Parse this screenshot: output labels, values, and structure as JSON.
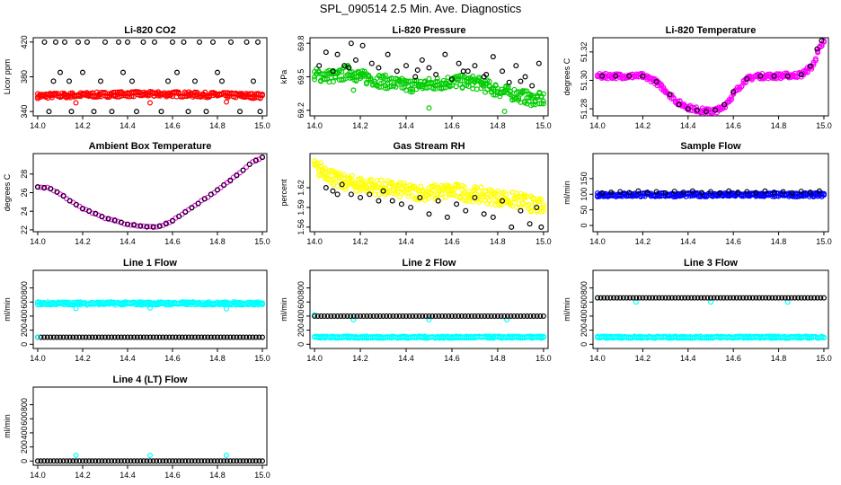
{
  "figure": {
    "title": "SPL_090514  2.5 Min. Ave. Diagnostics"
  },
  "chart_data": [
    {
      "id": "co2",
      "type": "scatter",
      "title": "Li-820 CO2",
      "xlabel": "",
      "ylabel": "Licor ppm",
      "xlim": [
        13.98,
        15.02
      ],
      "ylim": [
        335,
        425
      ],
      "xticks": [
        "14.0",
        "14.2",
        "14.4",
        "14.6",
        "14.8",
        "15.0"
      ],
      "yticks": [
        "340",
        "380",
        "420"
      ],
      "series": [
        {
          "color": "#ff0000",
          "style": "band",
          "x": [
            14.0,
            14.2,
            14.4,
            14.6,
            14.8,
            15.0
          ],
          "y": [
            358,
            359,
            360,
            360,
            359,
            358
          ],
          "spread": 3,
          "outliers": [
            [
              14.17,
              350
            ],
            [
              14.5,
              350
            ],
            [
              14.84,
              351
            ]
          ]
        },
        {
          "color": "#000000",
          "style": "points",
          "x": [
            14.03,
            14.08,
            14.12,
            14.18,
            14.22,
            14.3,
            14.36,
            14.4,
            14.47,
            14.52,
            14.6,
            14.65,
            14.72,
            14.78,
            14.86,
            14.93,
            14.98,
            14.05,
            14.15,
            14.25,
            14.33,
            14.44,
            14.55,
            14.67,
            14.75,
            14.9,
            14.99,
            14.07,
            14.14,
            14.28,
            14.42,
            14.58,
            14.7,
            14.82,
            14.96,
            14.1,
            14.2,
            14.38,
            14.62,
            14.8
          ],
          "y": [
            420,
            420,
            420,
            420,
            420,
            420,
            420,
            420,
            420,
            420,
            420,
            420,
            420,
            420,
            420,
            420,
            420,
            340,
            340,
            340,
            340,
            340,
            340,
            340,
            340,
            340,
            340,
            375,
            375,
            375,
            375,
            375,
            375,
            375,
            375,
            385,
            385,
            385,
            385,
            385
          ]
        }
      ]
    },
    {
      "id": "pressure",
      "type": "scatter",
      "title": "Li-820 Pressure",
      "xlabel": "",
      "ylabel": "kPa",
      "xlim": [
        13.98,
        15.02
      ],
      "ylim": [
        69.15,
        69.85
      ],
      "xticks": [
        "14.0",
        "14.2",
        "14.4",
        "14.6",
        "14.8",
        "15.0"
      ],
      "yticks": [
        "69.2",
        "69.5",
        "69.8"
      ],
      "series": [
        {
          "color": "#00cc00",
          "style": "band",
          "x": [
            14.0,
            14.1,
            14.15,
            14.2,
            14.3,
            14.4,
            14.5,
            14.6,
            14.7,
            14.8,
            14.9,
            14.95,
            15.0
          ],
          "y": [
            69.52,
            69.5,
            69.55,
            69.5,
            69.46,
            69.42,
            69.43,
            69.46,
            69.45,
            69.38,
            69.33,
            69.3,
            69.3
          ],
          "spread": 0.06,
          "outliers": [
            [
              14.17,
              69.38
            ],
            [
              14.5,
              69.22
            ],
            [
              14.83,
              69.19
            ]
          ]
        },
        {
          "color": "#000000",
          "style": "points",
          "x": [
            14.02,
            14.05,
            14.08,
            14.1,
            14.13,
            14.16,
            14.18,
            14.21,
            14.25,
            14.28,
            14.32,
            14.36,
            14.4,
            14.44,
            14.47,
            14.5,
            14.53,
            14.57,
            14.6,
            14.63,
            14.67,
            14.7,
            14.74,
            14.78,
            14.82,
            14.85,
            14.88,
            14.92,
            14.95,
            14.98,
            14.15,
            14.45,
            14.65,
            14.75,
            14.9
          ],
          "y": [
            69.6,
            69.72,
            69.55,
            69.7,
            69.6,
            69.8,
            69.65,
            69.78,
            69.62,
            69.58,
            69.7,
            69.55,
            69.6,
            69.5,
            69.65,
            69.58,
            69.52,
            69.7,
            69.48,
            69.62,
            69.55,
            69.6,
            69.5,
            69.68,
            69.55,
            69.45,
            69.6,
            69.5,
            69.42,
            69.62,
            69.58,
            69.56,
            69.55,
            69.52,
            69.46
          ]
        }
      ]
    },
    {
      "id": "temp820",
      "type": "scatter",
      "title": "Li-820 Temperature",
      "xlabel": "",
      "ylabel": "degrees C",
      "xlim": [
        13.98,
        15.02
      ],
      "ylim": [
        51.275,
        51.33
      ],
      "xticks": [
        "14.0",
        "14.2",
        "14.4",
        "14.6",
        "14.8",
        "15.0"
      ],
      "yticks": [
        "51.28",
        "51.30",
        "51.32"
      ],
      "series": [
        {
          "color": "#ff00ff",
          "style": "band",
          "x": [
            14.0,
            14.1,
            14.2,
            14.25,
            14.3,
            14.35,
            14.4,
            14.45,
            14.5,
            14.55,
            14.6,
            14.65,
            14.7,
            14.8,
            14.9,
            14.95,
            14.98,
            15.0
          ],
          "y": [
            51.303,
            51.303,
            51.303,
            51.3,
            51.293,
            51.285,
            51.281,
            51.279,
            51.278,
            51.28,
            51.29,
            51.3,
            51.303,
            51.303,
            51.304,
            51.31,
            51.322,
            51.327
          ],
          "spread": 0.0018
        },
        {
          "color": "#000000",
          "style": "points",
          "x": [
            14.02,
            14.08,
            14.14,
            14.2,
            14.26,
            14.32,
            14.36,
            14.4,
            14.44,
            14.48,
            14.52,
            14.56,
            14.6,
            14.66,
            14.72,
            14.78,
            14.84,
            14.9,
            14.94,
            14.97,
            14.99
          ],
          "y": [
            51.303,
            51.303,
            51.303,
            51.303,
            51.299,
            51.29,
            51.283,
            51.28,
            51.279,
            51.278,
            51.279,
            51.283,
            51.292,
            51.301,
            51.303,
            51.303,
            51.303,
            51.304,
            51.31,
            51.322,
            51.328
          ]
        }
      ]
    },
    {
      "id": "ambient",
      "type": "scatter",
      "title": "Ambient Box Temperature",
      "xlabel": "",
      "ylabel": "degrees C",
      "xlim": [
        13.98,
        15.02
      ],
      "ylim": [
        21.8,
        30.2
      ],
      "xticks": [
        "14.0",
        "14.2",
        "14.4",
        "14.6",
        "14.8",
        "15.0"
      ],
      "yticks": [
        "22",
        "24",
        "26",
        "28"
      ],
      "series": [
        {
          "color": "#ff00ff",
          "style": "curve",
          "x": [
            14.0,
            14.05,
            14.1,
            14.15,
            14.2,
            14.3,
            14.4,
            14.5,
            14.55,
            14.6,
            14.7,
            14.8,
            14.9,
            14.95,
            15.0
          ],
          "y": [
            26.6,
            26.5,
            25.9,
            25.0,
            24.3,
            23.3,
            22.6,
            22.3,
            22.4,
            23.0,
            24.6,
            26.3,
            28.1,
            29.2,
            29.8
          ]
        },
        {
          "color": "#000000",
          "style": "curve-points",
          "x": [
            14.0,
            14.05,
            14.1,
            14.15,
            14.2,
            14.3,
            14.4,
            14.5,
            14.55,
            14.6,
            14.7,
            14.8,
            14.9,
            14.95,
            15.0
          ],
          "y": [
            26.6,
            26.5,
            25.9,
            25.0,
            24.3,
            23.3,
            22.6,
            22.3,
            22.4,
            23.0,
            24.6,
            26.3,
            28.1,
            29.2,
            29.8
          ]
        }
      ]
    },
    {
      "id": "rh",
      "type": "scatter",
      "title": "Gas Stream RH",
      "xlabel": "",
      "ylabel": "percent",
      "xlim": [
        13.98,
        15.02
      ],
      "ylim": [
        1.553,
        1.672
      ],
      "xticks": [
        "14.0",
        "14.2",
        "14.4",
        "14.6",
        "14.8",
        "15.0"
      ],
      "yticks": [
        "1.56",
        "1.59",
        "1.62"
      ],
      "series": [
        {
          "color": "#ffff00",
          "style": "band",
          "x": [
            14.0,
            14.05,
            14.1,
            14.2,
            14.3,
            14.4,
            14.5,
            14.6,
            14.7,
            14.8,
            14.9,
            15.0
          ],
          "y": [
            1.65,
            1.645,
            1.63,
            1.625,
            1.62,
            1.615,
            1.612,
            1.615,
            1.61,
            1.605,
            1.6,
            1.59
          ],
          "spread": 0.012
        },
        {
          "color": "#000000",
          "style": "points",
          "x": [
            14.05,
            14.08,
            14.1,
            14.12,
            14.16,
            14.2,
            14.24,
            14.28,
            14.3,
            14.34,
            14.38,
            14.42,
            14.46,
            14.5,
            14.54,
            14.58,
            14.62,
            14.66,
            14.7,
            14.74,
            14.78,
            14.82,
            14.86,
            14.9,
            14.94,
            14.97,
            14.99
          ],
          "y": [
            1.62,
            1.615,
            1.61,
            1.625,
            1.61,
            1.605,
            1.61,
            1.6,
            1.615,
            1.6,
            1.595,
            1.59,
            1.605,
            1.58,
            1.6,
            1.575,
            1.595,
            1.585,
            1.605,
            1.58,
            1.575,
            1.6,
            1.56,
            1.585,
            1.565,
            1.59,
            1.56
          ]
        }
      ]
    },
    {
      "id": "sample",
      "type": "scatter",
      "title": "Sample Flow",
      "xlabel": "",
      "ylabel": "ml/min",
      "xlim": [
        13.98,
        15.02
      ],
      "ylim": [
        -20,
        230
      ],
      "xticks": [
        "14.0",
        "14.2",
        "14.4",
        "14.6",
        "14.8",
        "15.0"
      ],
      "yticks": [
        "0",
        "50",
        "100",
        "150"
      ],
      "series": [
        {
          "color": "#0000ff",
          "style": "band",
          "x": [
            14.0,
            15.0
          ],
          "y": [
            98,
            98
          ],
          "spread": 6
        },
        {
          "color": "#000000",
          "style": "points",
          "x": [
            14.02,
            14.06,
            14.1,
            14.14,
            14.18,
            14.22,
            14.26,
            14.3,
            14.34,
            14.38,
            14.42,
            14.46,
            14.5,
            14.54,
            14.58,
            14.62,
            14.66,
            14.7,
            14.74,
            14.78,
            14.82,
            14.86,
            14.9,
            14.94,
            14.98
          ],
          "y": [
            104,
            106,
            108,
            105,
            110,
            106,
            108,
            104,
            109,
            106,
            110,
            105,
            108,
            104,
            110,
            106,
            108,
            105,
            110,
            106,
            108,
            104,
            109,
            106,
            110
          ]
        }
      ]
    },
    {
      "id": "line1",
      "type": "scatter",
      "title": "Line 1 Flow",
      "xlabel": "",
      "ylabel": "ml/min",
      "xlim": [
        13.98,
        15.02
      ],
      "ylim": [
        -60,
        1050
      ],
      "xticks": [
        "14.0",
        "14.2",
        "14.4",
        "14.6",
        "14.8",
        "15.0"
      ],
      "yticks": [
        "0",
        "200",
        "400",
        "600",
        "800"
      ],
      "series": [
        {
          "color": "#00ffff",
          "style": "band",
          "x": [
            14.0,
            15.0
          ],
          "y": [
            580,
            580
          ],
          "spread": 22,
          "outliers": [
            [
              14.17,
              510
            ],
            [
              14.5,
              515
            ],
            [
              14.84,
              505
            ]
          ]
        },
        {
          "color": "#000000",
          "style": "line-points",
          "x": [
            14.0,
            15.0
          ],
          "y": [
            100,
            100
          ]
        },
        {
          "color": "#00ffff",
          "style": "points",
          "x": [
            14.0
          ],
          "y": [
            100
          ]
        }
      ]
    },
    {
      "id": "line2",
      "type": "scatter",
      "title": "Line 2 Flow",
      "xlabel": "",
      "ylabel": "ml/min",
      "xlim": [
        13.98,
        15.02
      ],
      "ylim": [
        -60,
        1050
      ],
      "xticks": [
        "14.0",
        "14.2",
        "14.4",
        "14.6",
        "14.8",
        "15.0"
      ],
      "yticks": [
        "0",
        "200",
        "400",
        "600",
        "800"
      ],
      "series": [
        {
          "color": "#00ffff",
          "style": "band",
          "x": [
            14.0,
            15.0
          ],
          "y": [
            100,
            100
          ],
          "spread": 14
        },
        {
          "color": "#00ffff",
          "style": "points",
          "x": [
            14.0,
            14.17,
            14.5,
            14.84
          ],
          "y": [
            420,
            350,
            350,
            350
          ]
        },
        {
          "color": "#000000",
          "style": "line-points",
          "x": [
            14.0,
            15.0
          ],
          "y": [
            400,
            400
          ]
        }
      ]
    },
    {
      "id": "line3",
      "type": "scatter",
      "title": "Line 3 Flow",
      "xlabel": "",
      "ylabel": "ml/min",
      "xlim": [
        13.98,
        15.02
      ],
      "ylim": [
        -60,
        1050
      ],
      "xticks": [
        "14.0",
        "14.2",
        "14.4",
        "14.6",
        "14.8",
        "15.0"
      ],
      "yticks": [
        "0",
        "200",
        "400",
        "600",
        "800"
      ],
      "series": [
        {
          "color": "#00ffff",
          "style": "band",
          "x": [
            14.0,
            15.0
          ],
          "y": [
            100,
            100
          ],
          "spread": 14
        },
        {
          "color": "#00ffff",
          "style": "points",
          "x": [
            14.0,
            14.17,
            14.5,
            14.84
          ],
          "y": [
            660,
            600,
            600,
            600
          ]
        },
        {
          "color": "#000000",
          "style": "line-points",
          "x": [
            14.0,
            15.0
          ],
          "y": [
            660,
            660
          ]
        }
      ]
    },
    {
      "id": "line4",
      "type": "scatter",
      "title": "Line 4 (LT) Flow",
      "xlabel": "",
      "ylabel": "ml/min",
      "xlim": [
        13.98,
        15.02
      ],
      "ylim": [
        -60,
        1050
      ],
      "xticks": [
        "14.0",
        "14.2",
        "14.4",
        "14.6",
        "14.8",
        "15.0"
      ],
      "yticks": [
        "0",
        "200",
        "400",
        "600",
        "800"
      ],
      "series": [
        {
          "color": "#000000",
          "style": "line-points",
          "x": [
            14.0,
            15.0
          ],
          "y": [
            0,
            0
          ]
        },
        {
          "color": "#00ffff",
          "style": "points",
          "x": [
            14.17,
            14.5,
            14.84
          ],
          "y": [
            80,
            80,
            80
          ]
        }
      ]
    }
  ]
}
